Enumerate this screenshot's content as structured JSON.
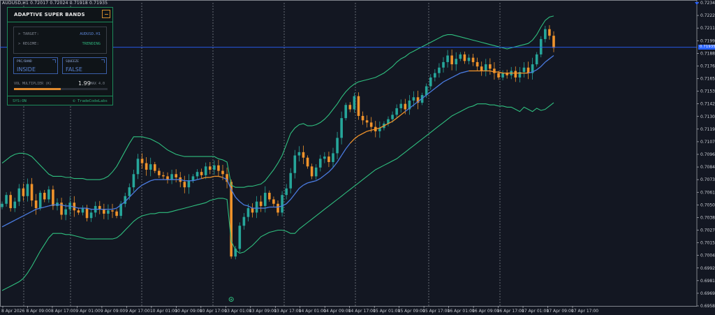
{
  "symbol": {
    "label": "AUDUSD,H1  0.72017 0.72024 0.71918 0.71935"
  },
  "panel": {
    "title": "ADAPTIVE SUPER BANDS",
    "target_key": "> TARGET:",
    "target_value": "AUDUSD.H1",
    "regime_key": "> REGIME:",
    "regime_value": "TRENDING",
    "price_band_label": "PRC/BAND",
    "price_band_value": "INSIDE",
    "squeeze_label": "SQUEEZE",
    "squeeze_value": "FALSE",
    "vol_label": "VOL MULTIPLIER (K)",
    "vol_value": "1.99",
    "vol_max": "MAX 4.0",
    "vol_fraction": 0.4975,
    "sys_status": "SYS:ON",
    "brand": "© TradeCodeLabs"
  },
  "current_price": "0.71935",
  "colors": {
    "background": "#131722",
    "bull": "#26a69a",
    "bear": "#f0932b",
    "band": "#2fbf7f",
    "mid_blue": "#4a7be0",
    "mid_orange": "#f0932b",
    "price_line": "#2962ff"
  },
  "chart_data": {
    "type": "candlestick",
    "title": "",
    "y_ticks": [
      "0.72340",
      "0.72225",
      "0.72110",
      "0.71995",
      "0.71880",
      "0.71765",
      "0.71650",
      "0.71535",
      "0.71420",
      "0.71305",
      "0.71190",
      "0.71075",
      "0.70960",
      "0.70845",
      "0.70730",
      "0.70615",
      "0.70500",
      "0.70385",
      "0.70270",
      "0.70155",
      "0.70040",
      "0.69925",
      "0.69810",
      "0.69695",
      "0.69580"
    ],
    "ylim": [
      0.6958,
      0.7234
    ],
    "x_ticks": [
      "8 Apr 2026",
      "8 Apr 09:00",
      "8 Apr 17:00",
      "9 Apr 01:00",
      "9 Apr 09:00",
      "9 Apr 17:00",
      "10 Apr 01:00",
      "10 Apr 09:00",
      "10 Apr 17:00",
      "13 Apr 01:00",
      "13 Apr 09:00",
      "13 Apr 17:00",
      "14 Apr 01:00",
      "14 Apr 09:00",
      "14 Apr 17:00",
      "15 Apr 01:00",
      "15 Apr 09:00",
      "15 Apr 17:00",
      "16 Apr 01:00",
      "16 Apr 09:00",
      "16 Apr 17:00",
      "17 Apr 01:00",
      "17 Apr 09:00",
      "17 Apr 17:00"
    ],
    "day_separators": [
      "8 Apr",
      "9 Apr",
      "10 Apr",
      "13 Apr",
      "14 Apr",
      "15 Apr",
      "16 Apr",
      "17 Apr"
    ],
    "series": [
      {
        "name": "Close",
        "values": [
          0.7051,
          0.7059,
          0.7047,
          0.7053,
          0.7065,
          0.7058,
          0.7069,
          0.7054,
          0.7047,
          0.7061,
          0.7055,
          0.7064,
          0.7049,
          0.7052,
          0.7041,
          0.7046,
          0.7052,
          0.7045,
          0.7043,
          0.7047,
          0.7038,
          0.7043,
          0.7049,
          0.7046,
          0.7042,
          0.7045,
          0.7044,
          0.704,
          0.7051,
          0.7058,
          0.7066,
          0.7078,
          0.7092,
          0.7088,
          0.7082,
          0.7087,
          0.7081,
          0.7077,
          0.7076,
          0.7073,
          0.7078,
          0.7075,
          0.7071,
          0.7066,
          0.7072,
          0.7076,
          0.708,
          0.7077,
          0.7085,
          0.7082,
          0.7086,
          0.7081,
          0.7078,
          0.7071,
          0.7003,
          0.701,
          0.7031,
          0.7039,
          0.7047,
          0.7043,
          0.7053,
          0.7049,
          0.7061,
          0.7055,
          0.7051,
          0.7043,
          0.7059,
          0.7065,
          0.7079,
          0.7095,
          0.7098,
          0.7093,
          0.7085,
          0.7076,
          0.7084,
          0.7092,
          0.7094,
          0.7089,
          0.7097,
          0.7111,
          0.7129,
          0.7141,
          0.7137,
          0.7149,
          0.7131,
          0.7127,
          0.7125,
          0.7121,
          0.7117,
          0.712,
          0.7124,
          0.7128,
          0.7132,
          0.7138,
          0.7142,
          0.7137,
          0.7145,
          0.7148,
          0.7143,
          0.715,
          0.7158,
          0.7166,
          0.717,
          0.7175,
          0.718,
          0.7186,
          0.7178,
          0.7183,
          0.7187,
          0.7181,
          0.7184,
          0.718,
          0.7176,
          0.7172,
          0.7178,
          0.7174,
          0.717,
          0.7166,
          0.717,
          0.7168,
          0.7172,
          0.7166,
          0.7171,
          0.7175,
          0.717,
          0.7178,
          0.7187,
          0.7201,
          0.721,
          0.7204,
          0.7193
        ]
      },
      {
        "name": "Upper",
        "values": [
          0.7088,
          0.7091,
          0.7094,
          0.7096,
          0.7097,
          0.7097,
          0.7096,
          0.7094,
          0.709,
          0.7086,
          0.7082,
          0.7078,
          0.7076,
          0.7076,
          0.7076,
          0.7075,
          0.7075,
          0.7074,
          0.7074,
          0.7074,
          0.7073,
          0.7073,
          0.7073,
          0.7073,
          0.7074,
          0.7076,
          0.708,
          0.7085,
          0.7092,
          0.7099,
          0.7106,
          0.7112,
          0.7112,
          0.7112,
          0.7111,
          0.711,
          0.7108,
          0.7106,
          0.7103,
          0.71,
          0.7098,
          0.7096,
          0.7095,
          0.7094,
          0.7094,
          0.7094,
          0.7094,
          0.7094,
          0.7094,
          0.7094,
          0.7094,
          0.7092,
          0.7091,
          0.7089,
          0.7068,
          0.7066,
          0.7066,
          0.7066,
          0.7067,
          0.7067,
          0.7068,
          0.7069,
          0.7072,
          0.7077,
          0.7082,
          0.7088,
          0.7095,
          0.7105,
          0.7115,
          0.712,
          0.7123,
          0.7124,
          0.7122,
          0.7122,
          0.7123,
          0.7125,
          0.7128,
          0.7132,
          0.7137,
          0.7142,
          0.7148,
          0.7153,
          0.7157,
          0.716,
          0.7162,
          0.7163,
          0.7164,
          0.7165,
          0.7166,
          0.7168,
          0.717,
          0.7173,
          0.7176,
          0.718,
          0.7183,
          0.7185,
          0.7188,
          0.719,
          0.7192,
          0.7194,
          0.7196,
          0.7198,
          0.72,
          0.7202,
          0.7204,
          0.7205,
          0.7205,
          0.7204,
          0.7203,
          0.7202,
          0.7201,
          0.72,
          0.7199,
          0.7198,
          0.7197,
          0.7196,
          0.7195,
          0.7194,
          0.7193,
          0.7192,
          0.7193,
          0.7194,
          0.7195,
          0.7196,
          0.7197,
          0.72,
          0.7205,
          0.7212,
          0.7218,
          0.7221,
          0.7222
        ]
      },
      {
        "name": "Middle",
        "values": [
          0.703,
          0.7032,
          0.7034,
          0.7036,
          0.7038,
          0.704,
          0.7042,
          0.7044,
          0.7046,
          0.7047,
          0.7048,
          0.7049,
          0.705,
          0.705,
          0.705,
          0.7049,
          0.7049,
          0.7048,
          0.7047,
          0.7047,
          0.7047,
          0.7046,
          0.7046,
          0.7046,
          0.7046,
          0.7046,
          0.7046,
          0.7047,
          0.705,
          0.7053,
          0.7057,
          0.7061,
          0.7065,
          0.7068,
          0.707,
          0.7072,
          0.7073,
          0.7073,
          0.7073,
          0.7073,
          0.7073,
          0.7073,
          0.7073,
          0.7072,
          0.7072,
          0.7072,
          0.7073,
          0.7074,
          0.7075,
          0.7075,
          0.7076,
          0.7076,
          0.7075,
          0.7073,
          0.7064,
          0.7057,
          0.7053,
          0.705,
          0.7049,
          0.7047,
          0.7047,
          0.7047,
          0.7047,
          0.7048,
          0.7048,
          0.7048,
          0.7049,
          0.7051,
          0.7055,
          0.706,
          0.7065,
          0.7068,
          0.707,
          0.7071,
          0.7072,
          0.7074,
          0.7077,
          0.708,
          0.7084,
          0.7089,
          0.7095,
          0.7101,
          0.7106,
          0.711,
          0.7113,
          0.7115,
          0.7117,
          0.7118,
          0.7119,
          0.712,
          0.7122,
          0.7124,
          0.7126,
          0.7129,
          0.7132,
          0.7135,
          0.7138,
          0.7141,
          0.7144,
          0.7147,
          0.715,
          0.7153,
          0.7156,
          0.7159,
          0.7162,
          0.7164,
          0.7166,
          0.7168,
          0.717,
          0.7171,
          0.7172,
          0.7172,
          0.7172,
          0.7172,
          0.7172,
          0.7172,
          0.7171,
          0.7171,
          0.717,
          0.717,
          0.717,
          0.717,
          0.717,
          0.717,
          0.717,
          0.7171,
          0.7173,
          0.7176,
          0.718,
          0.7183,
          0.7186
        ]
      },
      {
        "name": "Lower",
        "values": [
          0.6972,
          0.6974,
          0.6976,
          0.6978,
          0.698,
          0.6983,
          0.6988,
          0.6994,
          0.7001,
          0.7008,
          0.7014,
          0.702,
          0.7024,
          0.7024,
          0.7024,
          0.7023,
          0.7023,
          0.7022,
          0.7021,
          0.702,
          0.7019,
          0.7019,
          0.7019,
          0.7019,
          0.7019,
          0.7019,
          0.7019,
          0.702,
          0.7023,
          0.7027,
          0.7031,
          0.7035,
          0.7038,
          0.704,
          0.7041,
          0.7042,
          0.7042,
          0.7043,
          0.7043,
          0.7043,
          0.7044,
          0.7045,
          0.7046,
          0.7047,
          0.7048,
          0.7049,
          0.705,
          0.7051,
          0.7052,
          0.7054,
          0.7055,
          0.7056,
          0.7056,
          0.7055,
          0.7017,
          0.7009,
          0.7006,
          0.7007,
          0.701,
          0.7013,
          0.7017,
          0.7021,
          0.7023,
          0.7025,
          0.7026,
          0.7027,
          0.7027,
          0.7026,
          0.7024,
          0.7024,
          0.7028,
          0.7031,
          0.7034,
          0.7037,
          0.704,
          0.7043,
          0.7046,
          0.7049,
          0.7052,
          0.7055,
          0.7058,
          0.7061,
          0.7064,
          0.7067,
          0.707,
          0.7073,
          0.7076,
          0.7079,
          0.7082,
          0.7084,
          0.7086,
          0.7088,
          0.709,
          0.7092,
          0.7095,
          0.7098,
          0.7101,
          0.7104,
          0.7107,
          0.711,
          0.7113,
          0.7116,
          0.7119,
          0.7122,
          0.7125,
          0.7128,
          0.7131,
          0.7133,
          0.7135,
          0.7137,
          0.7139,
          0.714,
          0.7142,
          0.7142,
          0.7142,
          0.7141,
          0.7141,
          0.714,
          0.714,
          0.7139,
          0.7139,
          0.7137,
          0.7135,
          0.7139,
          0.7137,
          0.7135,
          0.7138,
          0.7136,
          0.7137,
          0.714,
          0.7143
        ]
      }
    ]
  }
}
